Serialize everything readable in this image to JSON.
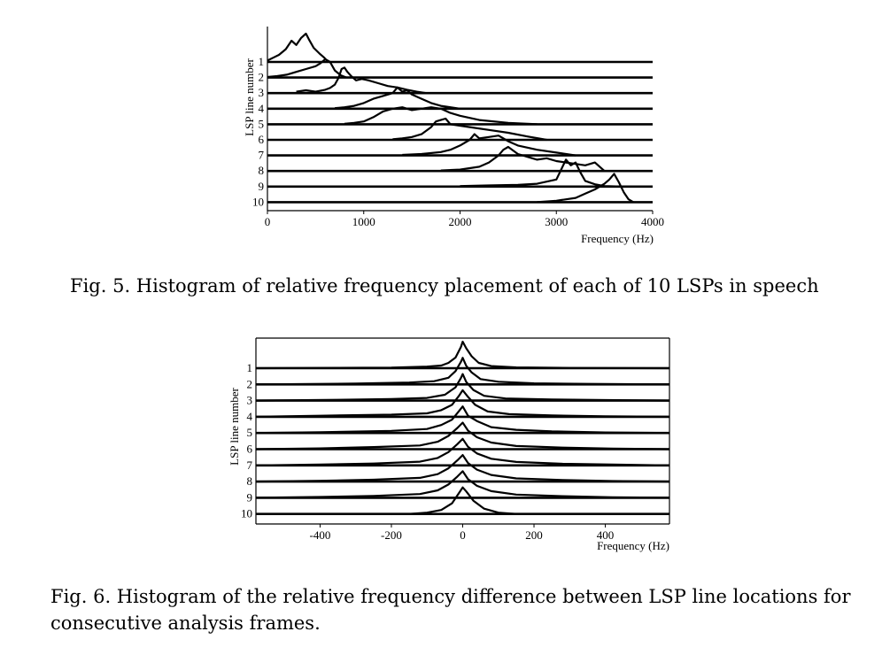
{
  "fig5": {
    "caption": "Fig. 5. Histogram of relative frequency placement of each of 10 LSPs in speech",
    "chart_data": {
      "type": "line",
      "ylabel": "LSP line number",
      "xlabel": "Frequency (Hz)",
      "xlim": [
        0,
        4000
      ],
      "xticks": [
        "0",
        "1000",
        "2000",
        "3000",
        "4000"
      ],
      "line_labels": [
        "1",
        "2",
        "3",
        "4",
        "5",
        "6",
        "7",
        "8",
        "9",
        "10"
      ],
      "series": [
        {
          "x": [
            0,
            60,
            120,
            190,
            250,
            300,
            350,
            400,
            430,
            480,
            540,
            590,
            630
          ],
          "y": [
            0.05,
            0.15,
            0.25,
            0.45,
            0.75,
            0.6,
            0.85,
            1.0,
            0.8,
            0.5,
            0.3,
            0.15,
            0.0
          ]
        },
        {
          "x": [
            0,
            100,
            200,
            300,
            400,
            500,
            550,
            600,
            650,
            700,
            760,
            820
          ],
          "y": [
            0.02,
            0.05,
            0.1,
            0.2,
            0.3,
            0.4,
            0.5,
            0.65,
            0.55,
            0.25,
            0.08,
            0.0
          ]
        },
        {
          "x": [
            300,
            400,
            500,
            600,
            650,
            700,
            740,
            770,
            800,
            830,
            870,
            920,
            980,
            1050,
            1150,
            1250,
            1350,
            1450,
            1550,
            1650
          ],
          "y": [
            0.05,
            0.1,
            0.05,
            0.12,
            0.18,
            0.3,
            0.55,
            0.85,
            0.9,
            0.75,
            0.6,
            0.45,
            0.5,
            0.45,
            0.35,
            0.25,
            0.2,
            0.12,
            0.05,
            0.0
          ]
        },
        {
          "x": [
            700,
            800,
            900,
            1000,
            1100,
            1200,
            1300,
            1350,
            1400,
            1450,
            1500,
            1600,
            1700,
            1800,
            2000
          ],
          "y": [
            0.02,
            0.05,
            0.1,
            0.2,
            0.35,
            0.45,
            0.55,
            0.75,
            0.6,
            0.65,
            0.5,
            0.35,
            0.2,
            0.1,
            0.0
          ]
        },
        {
          "x": [
            800,
            900,
            1000,
            1100,
            1200,
            1300,
            1400,
            1500,
            1600,
            1700,
            1800,
            1900,
            2000,
            2200,
            2500,
            2800
          ],
          "y": [
            0.02,
            0.05,
            0.1,
            0.25,
            0.45,
            0.55,
            0.6,
            0.5,
            0.55,
            0.6,
            0.55,
            0.4,
            0.3,
            0.15,
            0.05,
            0.0
          ]
        },
        {
          "x": [
            1300,
            1400,
            1500,
            1600,
            1700,
            1750,
            1800,
            1850,
            1900,
            2000,
            2100,
            2300,
            2500,
            2700,
            2900
          ],
          "y": [
            0.02,
            0.05,
            0.1,
            0.2,
            0.45,
            0.65,
            0.7,
            0.75,
            0.55,
            0.5,
            0.45,
            0.35,
            0.25,
            0.12,
            0.0
          ]
        },
        {
          "x": [
            1400,
            1600,
            1800,
            1900,
            2000,
            2100,
            2150,
            2200,
            2300,
            2400,
            2500,
            2600,
            2800,
            3000,
            3200
          ],
          "y": [
            0.02,
            0.05,
            0.12,
            0.2,
            0.35,
            0.55,
            0.75,
            0.6,
            0.65,
            0.7,
            0.5,
            0.35,
            0.2,
            0.1,
            0.0
          ]
        },
        {
          "x": [
            1800,
            2000,
            2200,
            2300,
            2400,
            2450,
            2500,
            2600,
            2700,
            2800,
            2900,
            3000,
            3100,
            3200,
            3300,
            3400,
            3500
          ],
          "y": [
            0.02,
            0.05,
            0.15,
            0.3,
            0.55,
            0.75,
            0.85,
            0.6,
            0.5,
            0.4,
            0.45,
            0.35,
            0.3,
            0.25,
            0.2,
            0.3,
            0.0
          ]
        },
        {
          "x": [
            2000,
            2300,
            2600,
            2800,
            3000,
            3050,
            3100,
            3150,
            3200,
            3250,
            3300,
            3400,
            3500,
            3700
          ],
          "y": [
            0.02,
            0.04,
            0.06,
            0.1,
            0.25,
            0.6,
            0.95,
            0.75,
            0.85,
            0.5,
            0.2,
            0.08,
            0.02,
            0.0
          ]
        },
        {
          "x": [
            2800,
            3000,
            3200,
            3300,
            3400,
            3500,
            3550,
            3600,
            3650,
            3700,
            3750,
            3800
          ],
          "y": [
            0.0,
            0.05,
            0.15,
            0.3,
            0.45,
            0.65,
            0.8,
            1.0,
            0.7,
            0.35,
            0.1,
            0.0
          ]
        }
      ]
    }
  },
  "fig6": {
    "caption_line1": "Fig. 6. Histogram of the relative frequency difference between LSP line locations for",
    "caption_line2": "consecutive analysis frames.",
    "chart_data": {
      "type": "line",
      "ylabel": "LSP line number",
      "xlabel": "Frequency (Hz)",
      "xlim": [
        -580,
        580
      ],
      "xticks": [
        "-400",
        "-200",
        "0",
        "200",
        "400"
      ],
      "tick_values": [
        -400,
        -200,
        0,
        200,
        400
      ],
      "line_labels": [
        "1",
        "2",
        "3",
        "4",
        "5",
        "6",
        "7",
        "8",
        "9",
        "10"
      ],
      "series": [
        {
          "x": [
            -580,
            -200,
            -100,
            -60,
            -40,
            -20,
            -5,
            0,
            10,
            25,
            45,
            80,
            150,
            300,
            580
          ],
          "y": [
            0.0,
            0.02,
            0.06,
            0.1,
            0.2,
            0.4,
            0.8,
            1.0,
            0.75,
            0.45,
            0.2,
            0.08,
            0.03,
            0.01,
            0.0
          ]
        },
        {
          "x": [
            -580,
            -300,
            -150,
            -80,
            -40,
            -20,
            -5,
            0,
            10,
            25,
            50,
            100,
            200,
            350,
            580
          ],
          "y": [
            0.0,
            0.03,
            0.07,
            0.12,
            0.25,
            0.5,
            0.85,
            1.0,
            0.7,
            0.45,
            0.2,
            0.1,
            0.04,
            0.02,
            0.0
          ]
        },
        {
          "x": [
            -580,
            -350,
            -200,
            -100,
            -50,
            -20,
            -5,
            0,
            10,
            30,
            60,
            120,
            250,
            400,
            580
          ],
          "y": [
            0.0,
            0.03,
            0.06,
            0.1,
            0.22,
            0.5,
            0.85,
            1.0,
            0.7,
            0.4,
            0.18,
            0.08,
            0.04,
            0.02,
            0.0
          ]
        },
        {
          "x": [
            -580,
            -400,
            -200,
            -100,
            -60,
            -30,
            -10,
            0,
            15,
            35,
            70,
            130,
            250,
            400,
            580
          ],
          "y": [
            0.0,
            0.04,
            0.08,
            0.13,
            0.25,
            0.45,
            0.8,
            1.0,
            0.75,
            0.45,
            0.2,
            0.1,
            0.05,
            0.02,
            0.0
          ]
        },
        {
          "x": [
            -580,
            -400,
            -200,
            -100,
            -60,
            -30,
            -15,
            0,
            15,
            40,
            80,
            150,
            250,
            400,
            580
          ],
          "y": [
            0.0,
            0.03,
            0.08,
            0.15,
            0.3,
            0.5,
            0.75,
            1.0,
            0.65,
            0.45,
            0.22,
            0.12,
            0.06,
            0.02,
            0.0
          ]
        },
        {
          "x": [
            -580,
            -400,
            -250,
            -120,
            -70,
            -40,
            -15,
            0,
            15,
            40,
            80,
            150,
            280,
            420,
            580
          ],
          "y": [
            0.0,
            0.03,
            0.08,
            0.14,
            0.28,
            0.5,
            0.8,
            1.0,
            0.7,
            0.45,
            0.25,
            0.12,
            0.06,
            0.02,
            0.0
          ]
        },
        {
          "x": [
            -580,
            -400,
            -250,
            -120,
            -70,
            -40,
            -15,
            0,
            15,
            40,
            80,
            150,
            280,
            420,
            580
          ],
          "y": [
            0.0,
            0.03,
            0.07,
            0.14,
            0.28,
            0.5,
            0.8,
            1.0,
            0.7,
            0.45,
            0.25,
            0.13,
            0.06,
            0.03,
            0.0
          ]
        },
        {
          "x": [
            -580,
            -400,
            -250,
            -120,
            -70,
            -40,
            -15,
            0,
            15,
            40,
            80,
            150,
            280,
            420,
            580
          ],
          "y": [
            0.0,
            0.03,
            0.07,
            0.14,
            0.28,
            0.5,
            0.8,
            1.0,
            0.7,
            0.45,
            0.25,
            0.12,
            0.06,
            0.02,
            0.0
          ]
        },
        {
          "x": [
            -580,
            -400,
            -250,
            -120,
            -70,
            -40,
            -15,
            0,
            15,
            40,
            80,
            150,
            280,
            420,
            580
          ],
          "y": [
            0.0,
            0.03,
            0.07,
            0.14,
            0.28,
            0.5,
            0.8,
            1.0,
            0.7,
            0.45,
            0.25,
            0.12,
            0.06,
            0.02,
            0.0
          ]
        },
        {
          "x": [
            -580,
            -150,
            -100,
            -60,
            -30,
            -10,
            0,
            10,
            30,
            60,
            100,
            150,
            580
          ],
          "y": [
            0.0,
            0.0,
            0.05,
            0.15,
            0.4,
            0.8,
            1.0,
            0.85,
            0.5,
            0.2,
            0.05,
            0.0,
            0.0
          ]
        }
      ]
    }
  }
}
